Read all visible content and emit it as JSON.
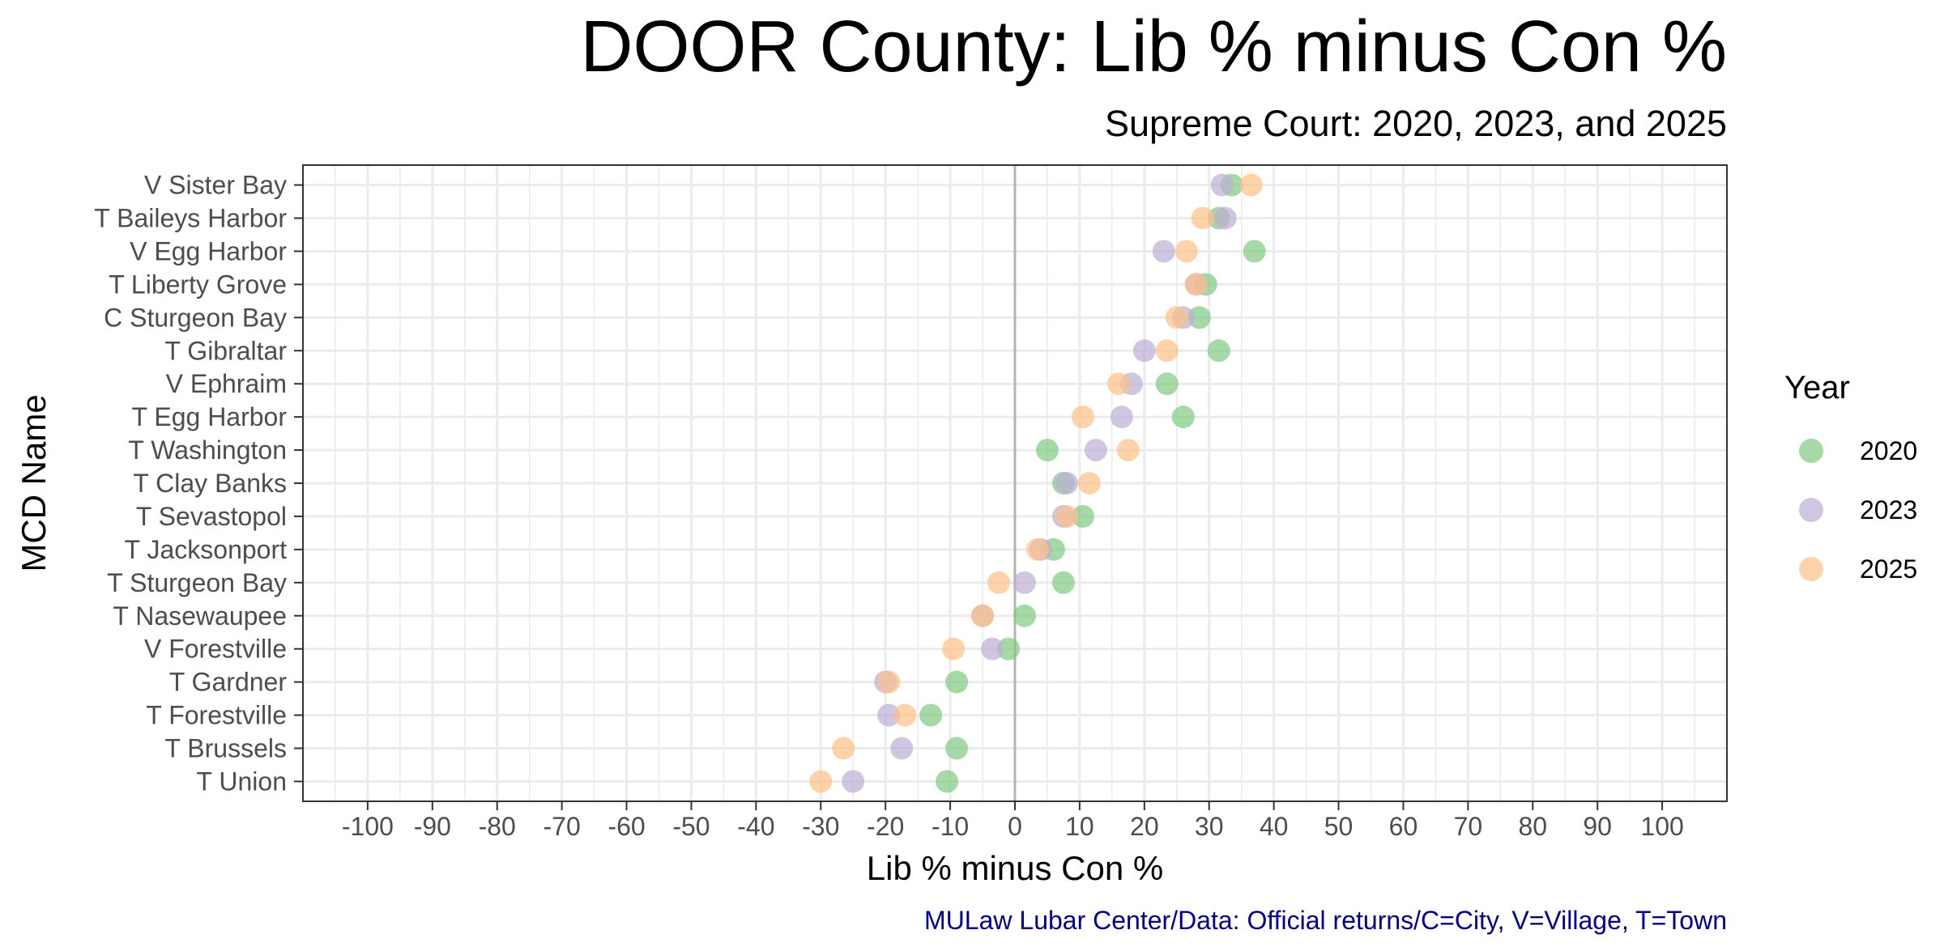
{
  "chart_data": {
    "type": "scatter",
    "title": "DOOR County: Lib % minus Con %",
    "subtitle": "Supreme Court: 2020, 2023, and 2025",
    "xlabel": "Lib % minus Con %",
    "ylabel": "MCD Name",
    "caption": "MULaw Lubar Center/Data: Official returns/C=City, V=Village, T=Town",
    "xlim": [
      -110,
      110
    ],
    "x_ticks": [
      "-100",
      "-90",
      "-80",
      "-70",
      "-60",
      "-50",
      "-40",
      "-30",
      "-20",
      "-10",
      "0",
      "10",
      "20",
      "30",
      "40",
      "50",
      "60",
      "70",
      "80",
      "90",
      "100"
    ],
    "grid": true,
    "zero_line": true,
    "legend": {
      "title": "Year",
      "placement": "right"
    },
    "categories": [
      "V Sister Bay",
      "T Baileys Harbor",
      "V Egg Harbor",
      "T Liberty Grove",
      "C Sturgeon Bay",
      "T Gibraltar",
      "V Ephraim",
      "T Egg Harbor",
      "T Washington",
      "T Clay Banks",
      "T Sevastopol",
      "T Jacksonport",
      "T Sturgeon Bay",
      "T Nasewaupee",
      "V Forestville",
      "T Gardner",
      "T Forestville",
      "T Brussels",
      "T Union"
    ],
    "series": [
      {
        "name": "2020",
        "color": "#7FC97F",
        "values": [
          33.5,
          31.5,
          37.0,
          29.5,
          28.5,
          31.5,
          23.5,
          26.0,
          5.0,
          7.5,
          10.5,
          6.0,
          7.5,
          1.5,
          -1.0,
          -9.0,
          -13.0,
          -9.0,
          -10.5
        ]
      },
      {
        "name": "2023",
        "color": "#BEAED4",
        "values": [
          32.0,
          32.5,
          23.0,
          28.0,
          26.0,
          20.0,
          18.0,
          16.5,
          12.5,
          8.0,
          7.5,
          4.0,
          1.5,
          -5.0,
          -3.5,
          -20.0,
          -19.5,
          -17.5,
          -25.0
        ]
      },
      {
        "name": "2025",
        "color": "#FDC086",
        "values": [
          36.5,
          29.0,
          26.5,
          28.0,
          25.0,
          23.5,
          16.0,
          10.5,
          17.5,
          11.5,
          8.0,
          3.5,
          -2.5,
          -5.0,
          -9.5,
          -19.5,
          -17.0,
          -26.5,
          -30.0
        ]
      }
    ]
  }
}
